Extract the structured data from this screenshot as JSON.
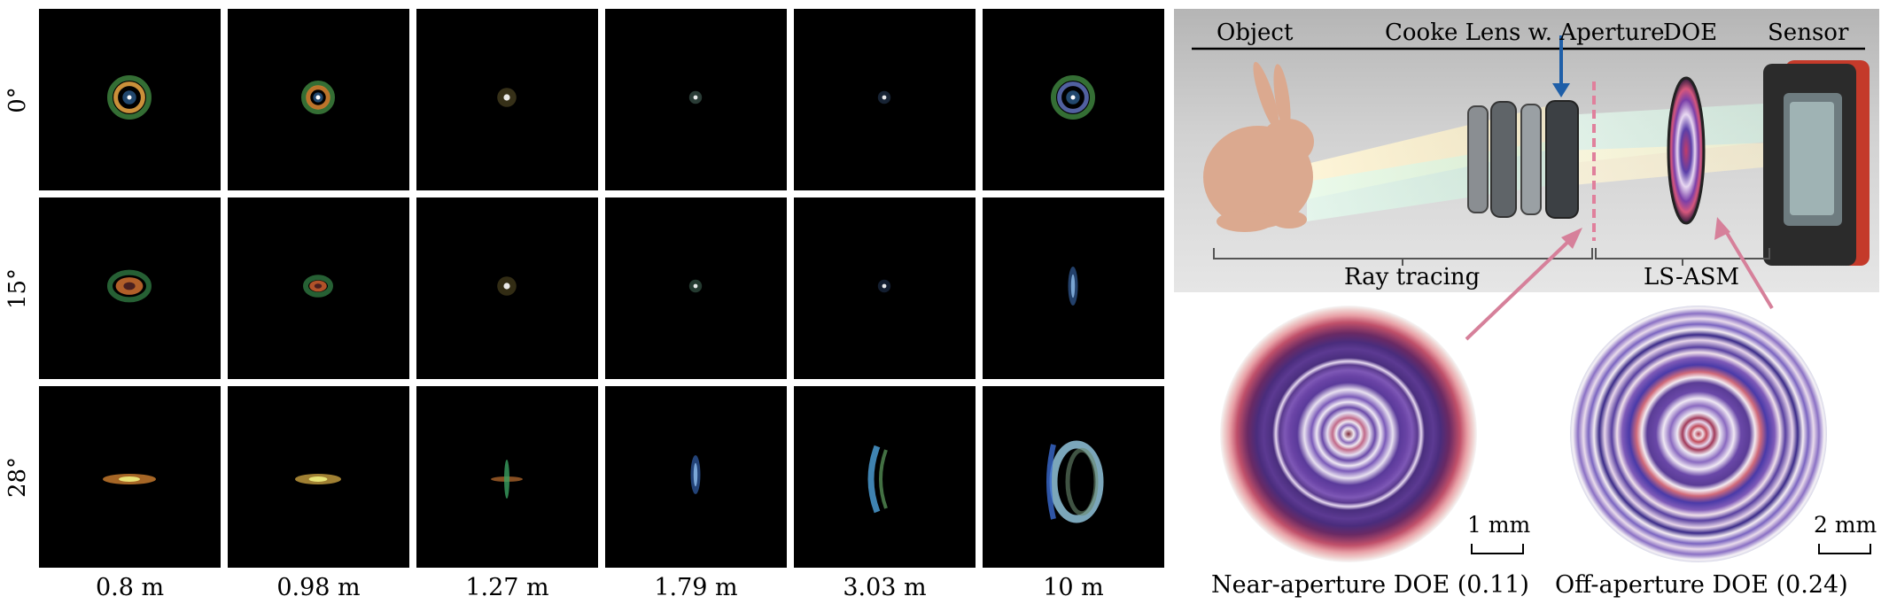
{
  "psf_grid": {
    "row_labels": [
      "0°",
      "15°",
      "28°"
    ],
    "column_labels": [
      "0.8 m",
      "0.98 m",
      "1.27 m",
      "1.79 m",
      "3.03 m",
      "10 m"
    ]
  },
  "setup": {
    "headers": {
      "object": "Object",
      "lens": "Cooke Lens w. Aperture",
      "doe": "DOE",
      "sensor": "Sensor"
    },
    "brackets": {
      "ray_tracing": "Ray tracing",
      "ls_asm": "LS-ASM"
    }
  },
  "doe_panels": [
    {
      "caption": "Near-aperture DOE (0.11)",
      "scale": "1 mm"
    },
    {
      "caption": "Off-aperture DOE (0.24)",
      "scale": "2 mm"
    }
  ],
  "colors": {
    "arrow_blue": "#1f5fa8",
    "arrow_pink": "#d6809a",
    "bunny": "#dba98f",
    "sensor_red": "#c43a2a"
  }
}
